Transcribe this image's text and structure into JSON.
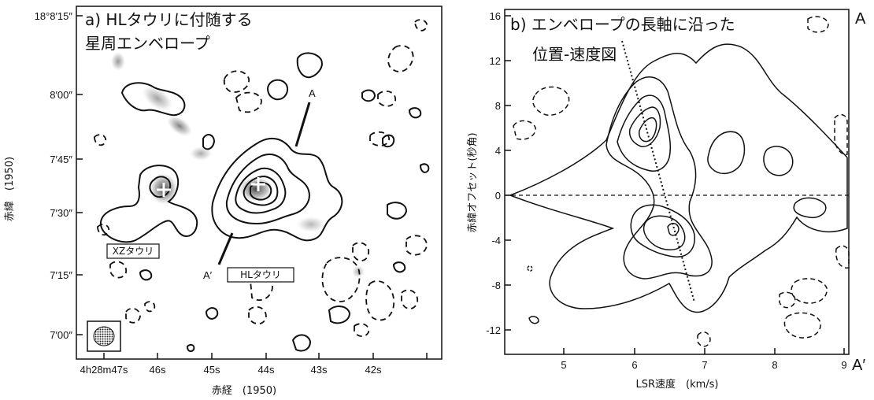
{
  "panel_a": {
    "title_line1": "a) HLタウリに付随する",
    "title_line2": "星周エンベロープ",
    "x_label": "赤経　(1950)",
    "y_label": "赤緯　(1950)",
    "x_ticks": [
      "4h28m47s",
      "46s",
      "45s",
      "44s",
      "43s",
      "42s"
    ],
    "y_ticks": [
      "18°8′15″",
      "8′00″",
      "7′45″",
      "7′30″",
      "7′15″",
      "7′00″"
    ],
    "label_xz": "XZタウリ",
    "label_hl": "HLタウリ",
    "label_a": "A",
    "label_a_prime": "A′"
  },
  "panel_b": {
    "title_line1": "b) エンベロープの長軸に沿った",
    "title_line2": "位置-速度図",
    "x_label": "LSR速度　(km/s)",
    "y_label": "赤緯オフセット(秒角)",
    "x_ticks": [
      "5",
      "6",
      "7",
      "8",
      "9"
    ],
    "y_ticks": [
      "16",
      "12",
      "8",
      "4",
      "0",
      "-4",
      "-8",
      "-12"
    ],
    "edge_top": "A",
    "edge_bottom": "A′"
  }
}
